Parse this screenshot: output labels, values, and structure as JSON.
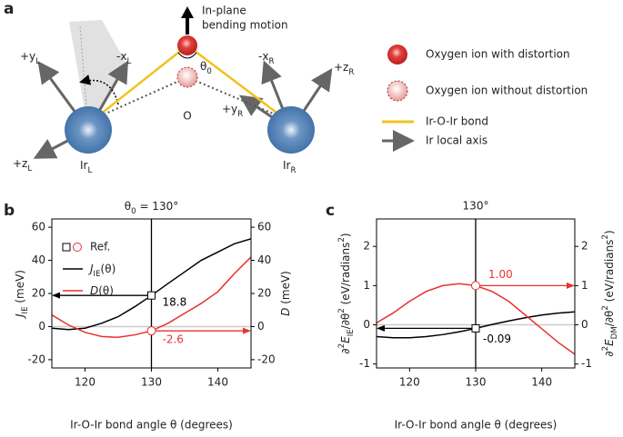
{
  "diagram": {
    "panel": "a",
    "motion": [
      "In-plane",
      "bending motion"
    ],
    "theta": [
      [
        "θ",
        ""
      ],
      [
        "0",
        "sub"
      ]
    ],
    "o_label": "O",
    "axes": [
      [
        [
          "+y",
          ""
        ],
        [
          "L",
          "sub"
        ]
      ],
      [
        [
          "-x",
          ""
        ],
        [
          "L",
          "sub"
        ]
      ],
      [
        [
          "+z",
          ""
        ],
        [
          "L",
          "sub"
        ]
      ],
      [
        [
          "-x",
          ""
        ],
        [
          "R",
          "sub"
        ]
      ],
      [
        [
          "+z",
          ""
        ],
        [
          "R",
          "sub"
        ]
      ],
      [
        [
          "+y",
          ""
        ],
        [
          "R",
          "sub"
        ]
      ]
    ],
    "ir": [
      [
        [
          "Ir",
          ""
        ],
        [
          "L",
          "sub"
        ]
      ],
      [
        [
          "Ir",
          ""
        ],
        [
          "R",
          "sub"
        ]
      ]
    ],
    "legend": [
      "Oxygen ion with distortion",
      "Oxygen ion without distortion",
      "Ir-O-Ir bond",
      "Ir local axis"
    ]
  },
  "chart_data": [
    {
      "type": "line",
      "panel": "b",
      "title": [
        [
          "θ",
          ""
        ],
        [
          "0",
          "sub"
        ],
        [
          " = 130°",
          ""
        ]
      ],
      "xlabel": "Ir-O-Ir bond angle θ (degrees)",
      "ylabel": [
        [
          "J",
          "i"
        ],
        [
          "IE",
          "sub"
        ],
        [
          " (meV)",
          ""
        ]
      ],
      "y2label": [
        [
          "D",
          "i"
        ],
        [
          " (meV)",
          ""
        ]
      ],
      "x": [
        115,
        117.5,
        120,
        122.5,
        125,
        127.5,
        130,
        132.5,
        135,
        137.5,
        140,
        142.5,
        145
      ],
      "xlim": [
        115,
        145
      ],
      "xticks": [
        120,
        130,
        140
      ],
      "ylim": [
        -25,
        65
      ],
      "yticks": [
        -20,
        0,
        20,
        40,
        60
      ],
      "y2lim": [
        -25,
        65
      ],
      "y2ticks": [
        -20,
        0,
        20,
        40,
        60
      ],
      "ref_x": 130,
      "legend": {
        "ref": "Ref."
      },
      "series": [
        {
          "name": [
            [
              "J",
              "i"
            ],
            [
              "IE",
              "sub"
            ],
            [
              "(θ)",
              ""
            ]
          ],
          "color": "#000000",
          "values": [
            -1,
            -1.8,
            -1,
            2,
            6,
            12,
            18.8,
            26,
            33,
            40,
            45,
            50,
            53
          ],
          "ref": 18.8,
          "arrow": "left"
        },
        {
          "name": [
            [
              "D",
              "i"
            ],
            [
              "(θ)",
              ""
            ]
          ],
          "color": "#e8312f",
          "axis": "y2",
          "values": [
            7,
            1,
            -3.5,
            -6,
            -6.5,
            -5,
            -2.6,
            2,
            8,
            14,
            21,
            32,
            42
          ],
          "ref": -2.6,
          "arrow": "right"
        }
      ]
    },
    {
      "type": "line",
      "panel": "c",
      "title": "130°",
      "xlabel": "Ir-O-Ir bond angle θ (degrees)",
      "ylabel": [
        [
          "∂",
          ""
        ],
        [
          "2",
          "sup"
        ],
        [
          "E",
          "i"
        ],
        [
          "IE",
          "sub"
        ],
        [
          "/∂θ",
          ""
        ],
        [
          "2",
          "sup"
        ],
        [
          " (eV/radians",
          ""
        ],
        [
          "2",
          "sup"
        ],
        [
          ")",
          ""
        ]
      ],
      "y2label": [
        [
          "∂",
          ""
        ],
        [
          "2",
          "sup"
        ],
        [
          "E",
          "i"
        ],
        [
          "DM",
          "sub"
        ],
        [
          "/∂θ",
          ""
        ],
        [
          "2",
          "sup"
        ],
        [
          " (eV/radians",
          ""
        ],
        [
          "2",
          "sup"
        ],
        [
          ")",
          ""
        ]
      ],
      "x": [
        115,
        117.5,
        120,
        122.5,
        125,
        127.5,
        130,
        132.5,
        135,
        137.5,
        140,
        142.5,
        145
      ],
      "xlim": [
        115,
        145
      ],
      "xticks": [
        120,
        130,
        140
      ],
      "ylim": [
        -1.1,
        2.7
      ],
      "yticks": [
        -1,
        0,
        1,
        2
      ],
      "y2lim": [
        -1.1,
        2.7
      ],
      "y2ticks": [
        -1,
        0,
        1,
        2
      ],
      "ref_x": 130,
      "series": [
        {
          "color": "#000000",
          "values": [
            -0.3,
            -0.33,
            -0.33,
            -0.3,
            -0.25,
            -0.18,
            -0.09,
            0.01,
            0.1,
            0.18,
            0.25,
            0.3,
            0.33
          ],
          "ref": -0.09,
          "arrow": "left"
        },
        {
          "color": "#e8312f",
          "axis": "y2",
          "values": [
            0.05,
            0.3,
            0.6,
            0.85,
            1,
            1.05,
            1,
            0.85,
            0.6,
            0.25,
            -0.1,
            -0.45,
            -0.75
          ],
          "ref": {
            "value": 1,
            "label": "1.00"
          },
          "arrow": "right"
        }
      ]
    }
  ]
}
